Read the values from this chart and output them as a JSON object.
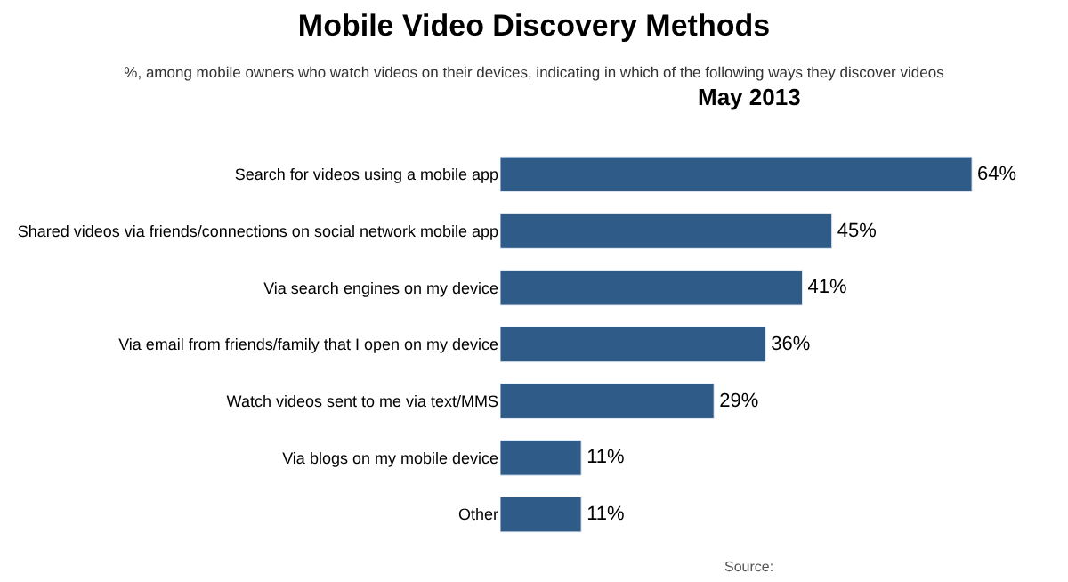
{
  "chart_data": {
    "type": "bar",
    "orientation": "horizontal",
    "title": "Mobile Video Discovery Methods",
    "subtitle": "%, among mobile owners who watch videos on their devices, indicating in which of the following ways they discover videos",
    "categories": [
      "Search for videos using a mobile app",
      "Shared videos via friends/connections on social network mobile app",
      "Via search engines on my device",
      "Via email from friends/family that I open on my device",
      "Watch videos sent to me via text/MMS",
      "Via blogs on my mobile device",
      "Other"
    ],
    "values": [
      64,
      45,
      41,
      36,
      29,
      11,
      11
    ],
    "value_labels": [
      "64%",
      "45%",
      "41%",
      "36%",
      "29%",
      "11%",
      "11%"
    ],
    "color": "#2f5b88",
    "annotations": [
      "May 2013",
      "Source:"
    ]
  }
}
